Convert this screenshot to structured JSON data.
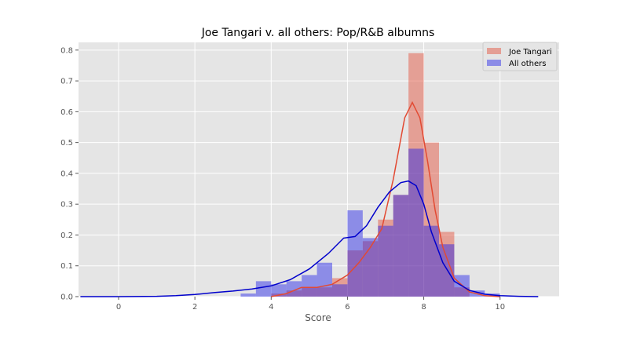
{
  "chart_data": {
    "type": "histogram",
    "title": "Joe Tangari v. all others: Pop/R&B albumns",
    "xlabel": "Score",
    "ylabel": "",
    "xlim": [
      -1.05,
      11.55
    ],
    "ylim": [
      0,
      0.825
    ],
    "x_ticks": [
      0,
      2,
      4,
      6,
      8,
      10
    ],
    "y_ticks": [
      0.0,
      0.1,
      0.2,
      0.3,
      0.4,
      0.5,
      0.6,
      0.7,
      0.8
    ],
    "grid": true,
    "legend_position": "top-right",
    "bin_width": 0.4,
    "series": [
      {
        "name": "Joe Tangari",
        "kind": "hist",
        "color": "#e24a33",
        "bins": [
          {
            "x0": 4.0,
            "value": 0.01
          },
          {
            "x0": 4.4,
            "value": 0.02
          },
          {
            "x0": 4.8,
            "value": 0.03
          },
          {
            "x0": 5.2,
            "value": 0.03
          },
          {
            "x0": 5.6,
            "value": 0.06
          },
          {
            "x0": 6.0,
            "value": 0.15
          },
          {
            "x0": 6.4,
            "value": 0.18
          },
          {
            "x0": 6.8,
            "value": 0.25
          },
          {
            "x0": 7.2,
            "value": 0.33
          },
          {
            "x0": 7.6,
            "value": 0.79
          },
          {
            "x0": 8.0,
            "value": 0.5
          },
          {
            "x0": 8.4,
            "value": 0.21
          },
          {
            "x0": 8.8,
            "value": 0.03
          }
        ]
      },
      {
        "name": "All others",
        "kind": "hist",
        "color": "#1f1fe8",
        "bins": [
          {
            "x0": 3.2,
            "value": 0.01
          },
          {
            "x0": 3.6,
            "value": 0.05
          },
          {
            "x0": 4.0,
            "value": 0.04
          },
          {
            "x0": 4.4,
            "value": 0.05
          },
          {
            "x0": 4.8,
            "value": 0.07
          },
          {
            "x0": 5.2,
            "value": 0.11
          },
          {
            "x0": 5.6,
            "value": 0.04
          },
          {
            "x0": 6.0,
            "value": 0.28
          },
          {
            "x0": 6.4,
            "value": 0.19
          },
          {
            "x0": 6.8,
            "value": 0.23
          },
          {
            "x0": 7.2,
            "value": 0.33
          },
          {
            "x0": 7.6,
            "value": 0.48
          },
          {
            "x0": 8.0,
            "value": 0.23
          },
          {
            "x0": 8.4,
            "value": 0.17
          },
          {
            "x0": 8.8,
            "value": 0.07
          },
          {
            "x0": 9.2,
            "value": 0.02
          },
          {
            "x0": 9.6,
            "value": 0.01
          }
        ]
      },
      {
        "name": "Joe Tangari",
        "kind": "kde",
        "color": "#e24a33",
        "x": [
          4.0,
          4.4,
          4.8,
          5.2,
          5.6,
          6.0,
          6.3,
          6.6,
          6.9,
          7.2,
          7.5,
          7.7,
          7.9,
          8.1,
          8.3,
          8.5,
          8.8,
          9.2,
          9.6,
          10.0
        ],
        "y": [
          0.0,
          0.01,
          0.03,
          0.03,
          0.04,
          0.07,
          0.11,
          0.16,
          0.22,
          0.38,
          0.58,
          0.63,
          0.58,
          0.44,
          0.28,
          0.16,
          0.06,
          0.015,
          0.003,
          0.0
        ]
      },
      {
        "name": "All others",
        "kind": "kde",
        "color": "#0000cc",
        "x": [
          -1.0,
          0.0,
          1.0,
          1.5,
          2.0,
          2.5,
          3.0,
          3.5,
          4.0,
          4.5,
          5.0,
          5.5,
          5.9,
          6.2,
          6.5,
          6.8,
          7.1,
          7.4,
          7.6,
          7.8,
          8.0,
          8.2,
          8.5,
          8.8,
          9.2,
          9.6,
          10.0,
          10.5,
          11.0
        ],
        "y": [
          0.0,
          0.0,
          0.001,
          0.003,
          0.007,
          0.013,
          0.018,
          0.025,
          0.035,
          0.055,
          0.09,
          0.14,
          0.19,
          0.195,
          0.23,
          0.29,
          0.34,
          0.37,
          0.375,
          0.36,
          0.3,
          0.21,
          0.11,
          0.05,
          0.02,
          0.008,
          0.003,
          0.001,
          0.0
        ]
      }
    ],
    "legend": [
      {
        "label": "Joe Tangari",
        "color": "#e24a33"
      },
      {
        "label": "All others",
        "color": "#1f1fe8"
      }
    ]
  }
}
